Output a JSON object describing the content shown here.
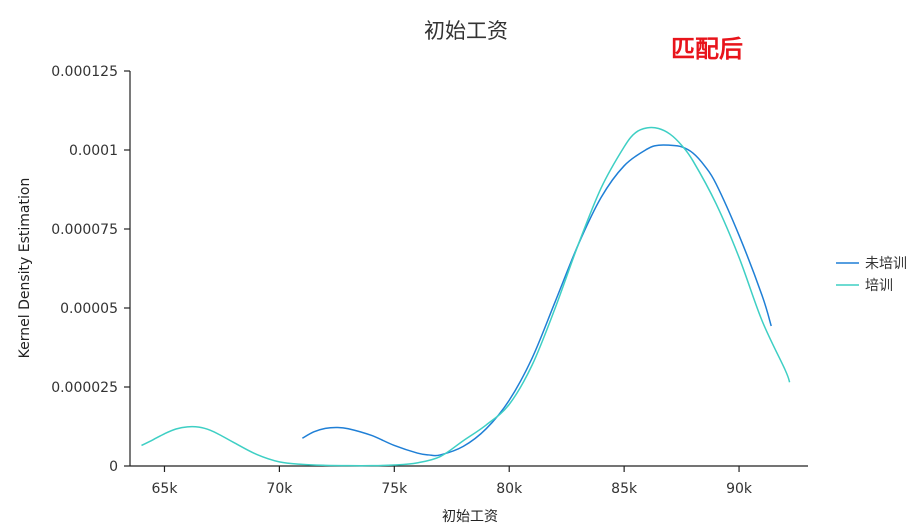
{
  "chart_data": {
    "type": "line",
    "title": "初始工资",
    "annotation": "匹配后",
    "xlabel": "初始工资",
    "ylabel": "Kernel Density Estimation",
    "xlim": [
      63500,
      93000
    ],
    "ylim": [
      0,
      0.000125
    ],
    "x_ticks": [
      65000,
      70000,
      75000,
      80000,
      85000,
      90000
    ],
    "x_tick_labels": [
      "65k",
      "70k",
      "75k",
      "80k",
      "85k",
      "90k"
    ],
    "y_ticks": [
      0,
      2.5e-05,
      5e-05,
      7.5e-05,
      0.0001,
      0.000125
    ],
    "y_tick_labels": [
      "0",
      "0.000025",
      "0.00005",
      "0.000075",
      "0.0001",
      "0.000125"
    ],
    "grid": false,
    "legend_position": "right",
    "series": [
      {
        "name": "未培训",
        "color": "#1f7fd6",
        "x": [
          71000,
          71500,
          72000,
          72500,
          73000,
          74000,
          75000,
          76000,
          76500,
          77000,
          78000,
          79000,
          80000,
          81000,
          82000,
          83000,
          84000,
          85000,
          86000,
          86500,
          87000,
          87500,
          88000,
          88500,
          89000,
          90000,
          91000,
          91400
        ],
        "values": [
          8.8e-06,
          1.08e-05,
          1.19e-05,
          1.22e-05,
          1.18e-05,
          9.7e-06,
          6.5e-06,
          4.1e-06,
          3.5e-06,
          3.5e-06,
          6.2e-06,
          1.18e-05,
          2.08e-05,
          3.42e-05,
          5.2e-05,
          7e-05,
          8.5e-05,
          9.5e-05,
          0.0001003,
          0.0001015,
          0.0001015,
          0.000101,
          9.9e-05,
          9.5e-05,
          8.93e-05,
          7.3e-05,
          5.4e-05,
          4.43e-05
        ]
      },
      {
        "name": "培训",
        "color": "#3ecfc4",
        "x": [
          64000,
          64500,
          65000,
          65500,
          66000,
          66500,
          67000,
          67500,
          68000,
          69000,
          70000,
          71000,
          72000,
          73000,
          74000,
          75000,
          76000,
          77000,
          78000,
          79000,
          80000,
          81000,
          82000,
          83000,
          84000,
          85000,
          85500,
          86000,
          86500,
          87000,
          87500,
          88000,
          89000,
          90000,
          91000,
          92000,
          92200
        ],
        "values": [
          6.5e-06,
          8.3e-06,
          1.02e-05,
          1.17e-05,
          1.24e-05,
          1.23e-05,
          1.13e-05,
          9.5e-06,
          7.5e-06,
          3.7e-06,
          1.3e-06,
          5e-07,
          2e-07,
          1e-07,
          1e-07,
          3e-07,
          1e-06,
          3e-06,
          8e-06,
          1.3e-05,
          1.95e-05,
          3.2e-05,
          5e-05,
          7e-05,
          8.8e-05,
          0.000101,
          0.0001055,
          0.000107,
          0.0001068,
          0.000105,
          0.0001015,
          9.65e-05,
          8.3e-05,
          6.6e-05,
          4.6e-05,
          3.05e-05,
          2.65e-05
        ]
      }
    ]
  }
}
